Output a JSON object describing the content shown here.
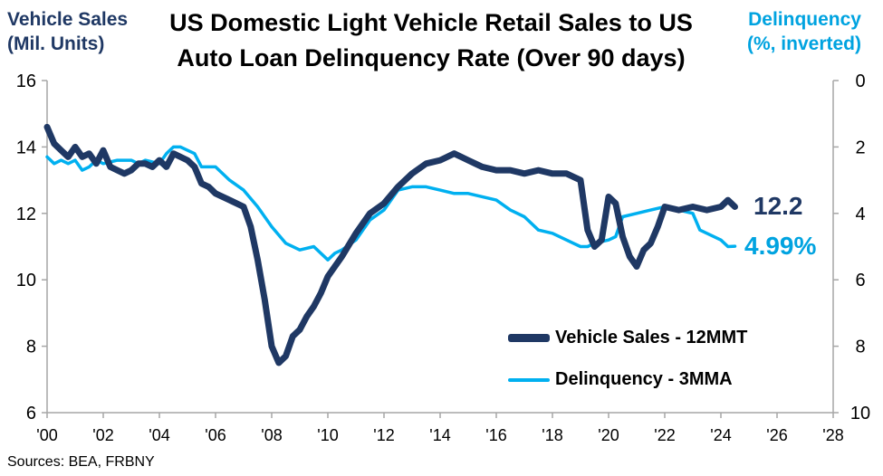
{
  "title": "US Domestic Light Vehicle Retail Sales to US Auto Loan Delinquency Rate (Over 90 days)",
  "left_axis_title": [
    "Vehicle Sales",
    "(Mil. Units)"
  ],
  "right_axis_title": [
    "Delinquency",
    "(%,  inverted)"
  ],
  "source": "Sources: BEA, FRBNY",
  "end_labels": {
    "sales": "12.2",
    "delinquency": "4.99%"
  },
  "colors": {
    "sales": "#1f3864",
    "delinquency": "#00b0f0",
    "axis": "#a6a6a6",
    "left_title": "#1f3864",
    "right_title": "#00a3e0"
  },
  "chart_data": {
    "type": "line",
    "x_ticks": [
      "'00",
      "'02",
      "'04",
      "'06",
      "'08",
      "'10",
      "'12",
      "'14",
      "'16",
      "'18",
      "'20",
      "'22",
      "'24",
      "'26",
      "'28"
    ],
    "xlim": [
      2000,
      2028
    ],
    "y_left": {
      "label": "Vehicle Sales (Mil. Units)",
      "ylim": [
        6,
        16
      ],
      "ticks": [
        "6",
        "8",
        "10",
        "12",
        "14",
        "16"
      ]
    },
    "y_right": {
      "label": "Delinquency (%, inverted)",
      "ylim": [
        10,
        0
      ],
      "inverted": true,
      "ticks": [
        "0",
        "2",
        "4",
        "6",
        "8",
        "10"
      ]
    },
    "grid": false,
    "legend_position": "bottom-right",
    "series": [
      {
        "name": "Vehicle Sales - 12MMT",
        "axis": "left",
        "x": [
          2000,
          2000.25,
          2000.5,
          2000.75,
          2001,
          2001.25,
          2001.5,
          2001.75,
          2002,
          2002.25,
          2002.5,
          2002.75,
          2003,
          2003.25,
          2003.5,
          2003.75,
          2004,
          2004.25,
          2004.5,
          2004.75,
          2005,
          2005.25,
          2005.5,
          2005.75,
          2006,
          2006.5,
          2007,
          2007.25,
          2007.5,
          2007.75,
          2008,
          2008.25,
          2008.5,
          2008.75,
          2009,
          2009.25,
          2009.5,
          2009.75,
          2010,
          2010.5,
          2011,
          2011.5,
          2012,
          2012.5,
          2013,
          2013.5,
          2014,
          2014.5,
          2015,
          2015.25,
          2015.5,
          2016,
          2016.5,
          2017,
          2017.5,
          2018,
          2018.5,
          2019,
          2019.25,
          2019.5,
          2019.75,
          2020,
          2020.25,
          2020.5,
          2020.75,
          2021,
          2021.25,
          2021.5,
          2021.75,
          2022,
          2022.5,
          2023,
          2023.5,
          2024,
          2024.25,
          2024.5
        ],
        "values": [
          14.6,
          14.1,
          13.9,
          13.7,
          14.0,
          13.7,
          13.8,
          13.5,
          13.9,
          13.4,
          13.3,
          13.2,
          13.3,
          13.5,
          13.5,
          13.4,
          13.6,
          13.4,
          13.8,
          13.7,
          13.6,
          13.4,
          12.9,
          12.8,
          12.6,
          12.4,
          12.2,
          11.6,
          10.6,
          9.4,
          8.0,
          7.5,
          7.7,
          8.3,
          8.5,
          8.9,
          9.2,
          9.6,
          10.1,
          10.7,
          11.4,
          12.0,
          12.3,
          12.8,
          13.2,
          13.5,
          13.6,
          13.8,
          13.6,
          13.5,
          13.4,
          13.3,
          13.3,
          13.2,
          13.3,
          13.2,
          13.2,
          13.0,
          11.5,
          11.0,
          11.2,
          12.5,
          12.3,
          11.3,
          10.7,
          10.4,
          10.9,
          11.1,
          11.6,
          12.2,
          12.1,
          12.2,
          12.1,
          12.2,
          12.4,
          12.2
        ]
      },
      {
        "name": "Delinquency - 3MMA",
        "axis": "right",
        "x": [
          2000,
          2000.25,
          2000.5,
          2000.75,
          2001,
          2001.25,
          2001.5,
          2001.75,
          2002,
          2002.5,
          2003,
          2003.25,
          2003.5,
          2004,
          2004.25,
          2004.5,
          2004.75,
          2005,
          2005.25,
          2005.5,
          2006,
          2006.5,
          2007,
          2007.5,
          2008,
          2008.5,
          2009,
          2009.5,
          2010,
          2010.25,
          2010.5,
          2011,
          2011.5,
          2012,
          2012.5,
          2013,
          2013.5,
          2014,
          2014.5,
          2015,
          2015.5,
          2016,
          2016.5,
          2017,
          2017.5,
          2018,
          2018.5,
          2019,
          2019.25,
          2019.5,
          2020,
          2020.25,
          2020.5,
          2021,
          2021.5,
          2022,
          2022.5,
          2023,
          2023.25,
          2023.5,
          2024,
          2024.25,
          2024.5
        ],
        "values": [
          2.3,
          2.5,
          2.4,
          2.5,
          2.4,
          2.7,
          2.6,
          2.4,
          2.5,
          2.4,
          2.4,
          2.5,
          2.4,
          2.5,
          2.2,
          2.0,
          2.0,
          2.1,
          2.2,
          2.6,
          2.6,
          3.0,
          3.3,
          3.8,
          4.4,
          4.9,
          5.1,
          5.0,
          5.4,
          5.2,
          5.1,
          4.8,
          4.2,
          3.9,
          3.3,
          3.2,
          3.2,
          3.3,
          3.4,
          3.4,
          3.5,
          3.6,
          3.9,
          4.1,
          4.5,
          4.6,
          4.8,
          5.0,
          5.0,
          4.9,
          4.8,
          4.7,
          4.1,
          4.0,
          3.9,
          3.8,
          3.9,
          4.0,
          4.5,
          4.6,
          4.8,
          5.0,
          4.99
        ]
      }
    ]
  }
}
